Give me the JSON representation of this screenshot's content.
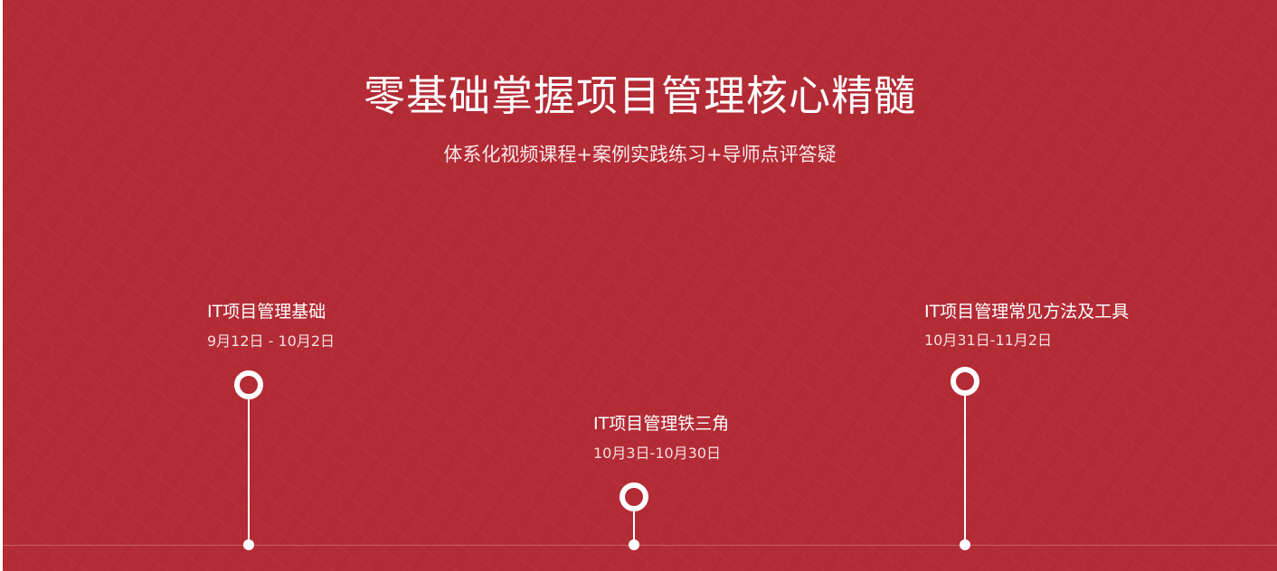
{
  "header": {
    "title": "零基础掌握项目管理核心精髓",
    "subtitle": "体系化视频课程+案例实践练习+导师点评答疑"
  },
  "timeline": {
    "milestones": [
      {
        "name": "IT项目管理基础",
        "date": "9月12日 - 10月2日"
      },
      {
        "name": "IT项目管理铁三角",
        "date": "10月3日-10月30日"
      },
      {
        "name": "IT项目管理常见方法及工具",
        "date": "10月31日-11月2日"
      }
    ]
  },
  "colors": {
    "background": "#b32b35",
    "text": "#ffffff"
  }
}
